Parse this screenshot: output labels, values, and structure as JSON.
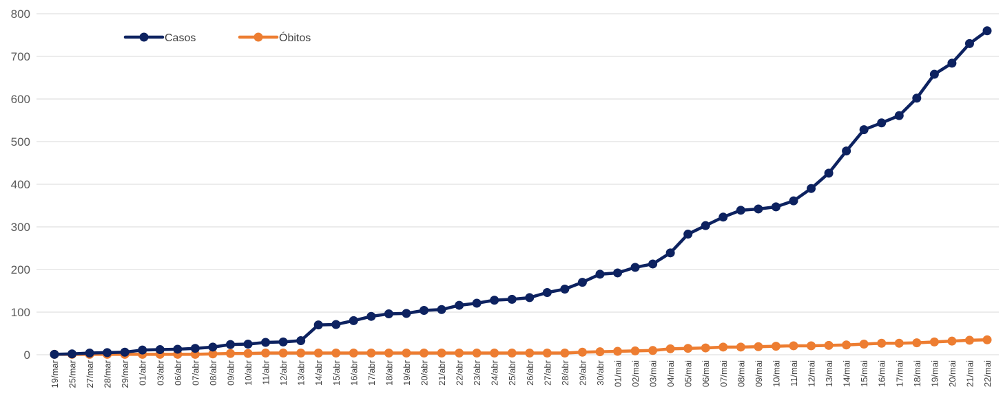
{
  "chart_data": {
    "type": "line",
    "title": "",
    "xlabel": "",
    "ylabel": "",
    "ylim": [
      0,
      800
    ],
    "yticks": [
      0,
      100,
      200,
      300,
      400,
      500,
      600,
      700,
      800
    ],
    "grid": true,
    "legend_position": "top-left",
    "categories": [
      "19/mar",
      "25/mar",
      "27/mar",
      "28/mar",
      "29/mar",
      "01/abr",
      "03/abr",
      "06/abr",
      "07/abr",
      "08/abr",
      "09/abr",
      "10/abr",
      "11/abr",
      "12/abr",
      "13/abr",
      "14/abr",
      "15/abr",
      "16/abr",
      "17/abr",
      "18/abr",
      "19/abr",
      "20/abr",
      "21/abr",
      "22/abr",
      "23/abr",
      "24/abr",
      "25/abr",
      "26/abr",
      "27/abr",
      "28/abr",
      "29/abr",
      "30/abr",
      "01/mai",
      "02/mai",
      "03/mai",
      "04/mai",
      "05/mai",
      "06/mai",
      "07/mai",
      "08/mai",
      "09/mai",
      "10/mai",
      "11/mai",
      "12/mai",
      "13/mai",
      "14/mai",
      "15/mai",
      "16/mai",
      "17/mai",
      "18/mai",
      "19/mai",
      "20/mai",
      "21/mai",
      "22/mai"
    ],
    "series": [
      {
        "name": "Casos",
        "color": "#0d2260",
        "values": [
          1,
          2,
          4,
          5,
          6,
          11,
          12,
          13,
          15,
          18,
          24,
          25,
          29,
          30,
          33,
          70,
          71,
          80,
          90,
          96,
          97,
          104,
          106,
          116,
          121,
          128,
          130,
          134,
          146,
          154,
          170,
          189,
          192,
          205,
          213,
          239,
          283,
          303,
          323,
          339,
          342,
          347,
          361,
          390,
          426,
          478,
          528,
          544,
          561,
          602,
          658,
          684,
          730,
          760
        ]
      },
      {
        "name": "Óbitos",
        "color": "#ed7d31",
        "values": [
          1,
          1,
          1,
          1,
          1,
          1,
          1,
          1,
          1,
          2,
          3,
          3,
          4,
          4,
          4,
          4,
          4,
          4,
          4,
          4,
          4,
          4,
          4,
          4,
          4,
          4,
          4,
          4,
          4,
          4,
          6,
          7,
          8,
          9,
          10,
          14,
          15,
          16,
          18,
          18,
          19,
          20,
          21,
          21,
          22,
          23,
          25,
          27,
          27,
          28,
          30,
          32,
          34,
          35
        ]
      }
    ]
  }
}
